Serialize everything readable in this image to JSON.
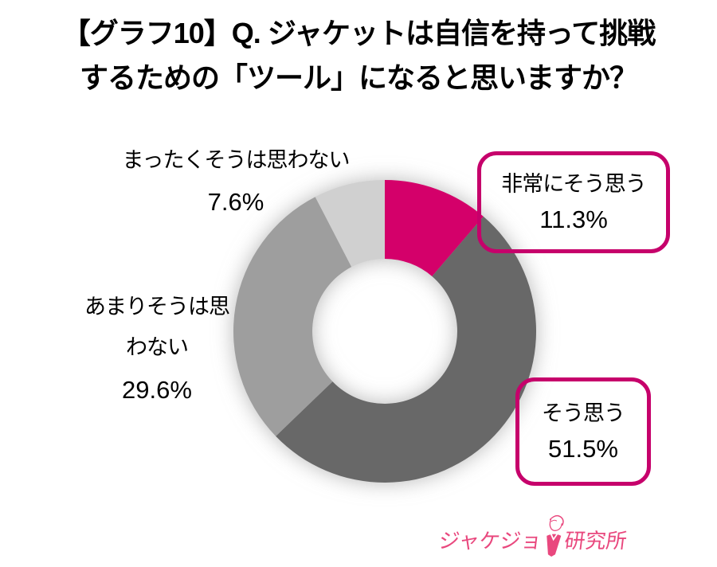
{
  "title": {
    "line1": "【グラフ10】Q. ジャケットは自信を持って挑戦",
    "line2": "するための「ツール」になると思いますか？"
  },
  "chart_data": {
    "type": "pie",
    "subtype": "donut",
    "title": "【グラフ10】Q. ジャケットは自信を持って挑戦するための「ツール」になると思いますか？",
    "unit": "%",
    "start_angle_deg": 0,
    "direction": "clockwise",
    "inner_radius_ratio": 0.48,
    "segments": [
      {
        "id": "strongly-agree",
        "label": "非常にそう思う",
        "value": 11.3,
        "color": "#D4006A"
      },
      {
        "id": "agree",
        "label": "そう思う",
        "value": 51.5,
        "color": "#686868"
      },
      {
        "id": "disagree",
        "label": "あまりそうは思わない",
        "value": 29.6,
        "color": "#9E9E9E"
      },
      {
        "id": "strongly-disagree",
        "label": "まったくそうは思わない",
        "value": 7.6,
        "color": "#D0D0D0"
      }
    ]
  },
  "labels": {
    "strongly_disagree": {
      "text": "まったくそうは思わない",
      "pct": "7.6%"
    },
    "disagree": {
      "line1": "あまりそうは思",
      "line2": "わない",
      "pct": "29.6%"
    },
    "strongly_agree": {
      "text": "非常にそう思う",
      "pct": "11.3%"
    },
    "agree": {
      "text": "そう思う",
      "pct": "51.5%"
    }
  },
  "logo": {
    "text_left": "ジャケジョ",
    "text_right": "研究所"
  },
  "colors": {
    "accent_magenta": "#D4006A",
    "dark_gray": "#686868",
    "medium_gray": "#9E9E9E",
    "light_gray": "#D0D0D0",
    "callout_border": "#C6006B",
    "logo_pink": "#E9487E",
    "title_text": "#000000"
  }
}
